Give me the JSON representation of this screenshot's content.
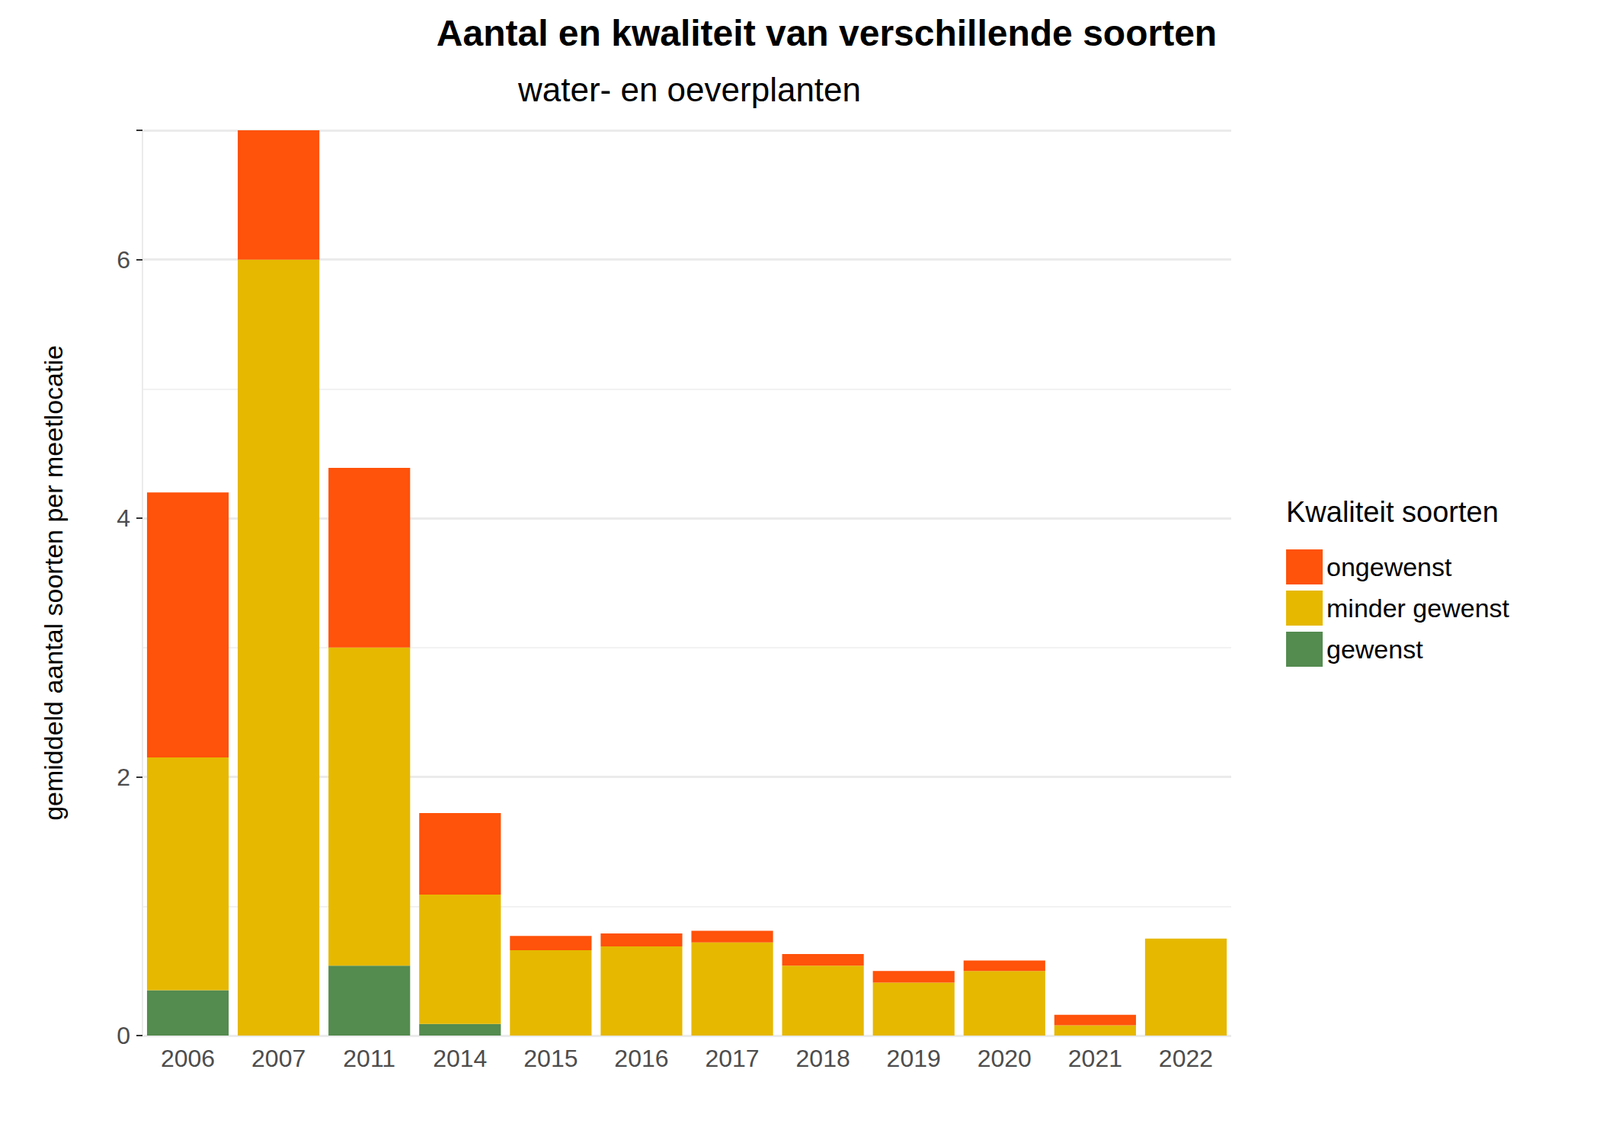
{
  "chart_data": {
    "type": "bar",
    "title": "Aantal en kwaliteit van verschillende soorten",
    "subtitle": "water- en oeverplanten",
    "y_label": "gemiddeld aantal soorten per meetlocatie",
    "legend_title": "Kwaliteit soorten",
    "categories": [
      "2006",
      "2007",
      "2011",
      "2014",
      "2015",
      "2016",
      "2017",
      "2018",
      "2019",
      "2020",
      "2021",
      "2022"
    ],
    "series": [
      {
        "name": "gewenst",
        "color": "#548B4F",
        "values": [
          0.35,
          0,
          0.54,
          0.09,
          0,
          0,
          0,
          0,
          0,
          0,
          0,
          0
        ]
      },
      {
        "name": "minder gewenst",
        "color": "#E6B800",
        "values": [
          1.8,
          6.0,
          2.46,
          1.0,
          0.66,
          0.69,
          0.72,
          0.54,
          0.41,
          0.5,
          0.08,
          0.75
        ]
      },
      {
        "name": "ongewenst",
        "color": "#FF520A",
        "values": [
          2.05,
          1.0,
          1.39,
          0.63,
          0.11,
          0.1,
          0.09,
          0.09,
          0.09,
          0.08,
          0.08,
          0
        ]
      }
    ],
    "stacked": true,
    "ylim": [
      0,
      7
    ],
    "yticks": [
      0,
      2,
      4,
      6
    ],
    "grid": true,
    "legend": "right"
  }
}
